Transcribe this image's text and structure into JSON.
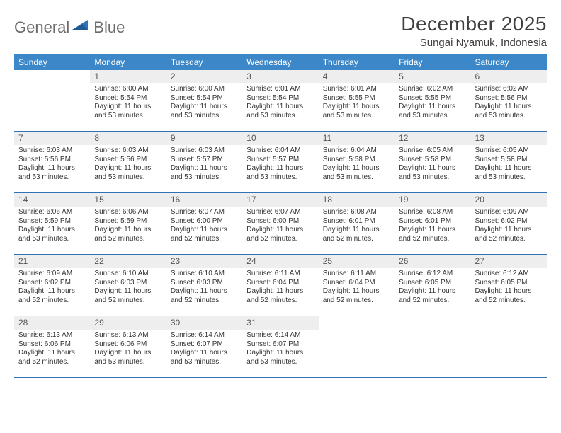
{
  "brand": {
    "name_a": "General",
    "name_b": "Blue"
  },
  "title": "December 2025",
  "location": "Sungai Nyamuk, Indonesia",
  "colors": {
    "header_bg": "#3b87c8",
    "header_text": "#ffffff",
    "rule": "#2e74b5",
    "daynum_bg": "#eeeeee",
    "text": "#333333",
    "logo_gray": "#6b6b6b",
    "logo_blue": "#2e74b5",
    "page_bg": "#ffffff"
  },
  "typography": {
    "title_fontsize": 28,
    "location_fontsize": 15,
    "dayheader_fontsize": 12,
    "daynum_fontsize": 12,
    "body_fontsize": 10
  },
  "day_names": [
    "Sunday",
    "Monday",
    "Tuesday",
    "Wednesday",
    "Thursday",
    "Friday",
    "Saturday"
  ],
  "weeks": [
    [
      {
        "n": "",
        "sunrise": "",
        "sunset": "",
        "daylight1": "",
        "daylight2": "",
        "empty": true
      },
      {
        "n": "1",
        "sunrise": "Sunrise: 6:00 AM",
        "sunset": "Sunset: 5:54 PM",
        "daylight1": "Daylight: 11 hours",
        "daylight2": "and 53 minutes."
      },
      {
        "n": "2",
        "sunrise": "Sunrise: 6:00 AM",
        "sunset": "Sunset: 5:54 PM",
        "daylight1": "Daylight: 11 hours",
        "daylight2": "and 53 minutes."
      },
      {
        "n": "3",
        "sunrise": "Sunrise: 6:01 AM",
        "sunset": "Sunset: 5:54 PM",
        "daylight1": "Daylight: 11 hours",
        "daylight2": "and 53 minutes."
      },
      {
        "n": "4",
        "sunrise": "Sunrise: 6:01 AM",
        "sunset": "Sunset: 5:55 PM",
        "daylight1": "Daylight: 11 hours",
        "daylight2": "and 53 minutes."
      },
      {
        "n": "5",
        "sunrise": "Sunrise: 6:02 AM",
        "sunset": "Sunset: 5:55 PM",
        "daylight1": "Daylight: 11 hours",
        "daylight2": "and 53 minutes."
      },
      {
        "n": "6",
        "sunrise": "Sunrise: 6:02 AM",
        "sunset": "Sunset: 5:56 PM",
        "daylight1": "Daylight: 11 hours",
        "daylight2": "and 53 minutes."
      }
    ],
    [
      {
        "n": "7",
        "sunrise": "Sunrise: 6:03 AM",
        "sunset": "Sunset: 5:56 PM",
        "daylight1": "Daylight: 11 hours",
        "daylight2": "and 53 minutes."
      },
      {
        "n": "8",
        "sunrise": "Sunrise: 6:03 AM",
        "sunset": "Sunset: 5:56 PM",
        "daylight1": "Daylight: 11 hours",
        "daylight2": "and 53 minutes."
      },
      {
        "n": "9",
        "sunrise": "Sunrise: 6:03 AM",
        "sunset": "Sunset: 5:57 PM",
        "daylight1": "Daylight: 11 hours",
        "daylight2": "and 53 minutes."
      },
      {
        "n": "10",
        "sunrise": "Sunrise: 6:04 AM",
        "sunset": "Sunset: 5:57 PM",
        "daylight1": "Daylight: 11 hours",
        "daylight2": "and 53 minutes."
      },
      {
        "n": "11",
        "sunrise": "Sunrise: 6:04 AM",
        "sunset": "Sunset: 5:58 PM",
        "daylight1": "Daylight: 11 hours",
        "daylight2": "and 53 minutes."
      },
      {
        "n": "12",
        "sunrise": "Sunrise: 6:05 AM",
        "sunset": "Sunset: 5:58 PM",
        "daylight1": "Daylight: 11 hours",
        "daylight2": "and 53 minutes."
      },
      {
        "n": "13",
        "sunrise": "Sunrise: 6:05 AM",
        "sunset": "Sunset: 5:58 PM",
        "daylight1": "Daylight: 11 hours",
        "daylight2": "and 53 minutes."
      }
    ],
    [
      {
        "n": "14",
        "sunrise": "Sunrise: 6:06 AM",
        "sunset": "Sunset: 5:59 PM",
        "daylight1": "Daylight: 11 hours",
        "daylight2": "and 53 minutes."
      },
      {
        "n": "15",
        "sunrise": "Sunrise: 6:06 AM",
        "sunset": "Sunset: 5:59 PM",
        "daylight1": "Daylight: 11 hours",
        "daylight2": "and 52 minutes."
      },
      {
        "n": "16",
        "sunrise": "Sunrise: 6:07 AM",
        "sunset": "Sunset: 6:00 PM",
        "daylight1": "Daylight: 11 hours",
        "daylight2": "and 52 minutes."
      },
      {
        "n": "17",
        "sunrise": "Sunrise: 6:07 AM",
        "sunset": "Sunset: 6:00 PM",
        "daylight1": "Daylight: 11 hours",
        "daylight2": "and 52 minutes."
      },
      {
        "n": "18",
        "sunrise": "Sunrise: 6:08 AM",
        "sunset": "Sunset: 6:01 PM",
        "daylight1": "Daylight: 11 hours",
        "daylight2": "and 52 minutes."
      },
      {
        "n": "19",
        "sunrise": "Sunrise: 6:08 AM",
        "sunset": "Sunset: 6:01 PM",
        "daylight1": "Daylight: 11 hours",
        "daylight2": "and 52 minutes."
      },
      {
        "n": "20",
        "sunrise": "Sunrise: 6:09 AM",
        "sunset": "Sunset: 6:02 PM",
        "daylight1": "Daylight: 11 hours",
        "daylight2": "and 52 minutes."
      }
    ],
    [
      {
        "n": "21",
        "sunrise": "Sunrise: 6:09 AM",
        "sunset": "Sunset: 6:02 PM",
        "daylight1": "Daylight: 11 hours",
        "daylight2": "and 52 minutes."
      },
      {
        "n": "22",
        "sunrise": "Sunrise: 6:10 AM",
        "sunset": "Sunset: 6:03 PM",
        "daylight1": "Daylight: 11 hours",
        "daylight2": "and 52 minutes."
      },
      {
        "n": "23",
        "sunrise": "Sunrise: 6:10 AM",
        "sunset": "Sunset: 6:03 PM",
        "daylight1": "Daylight: 11 hours",
        "daylight2": "and 52 minutes."
      },
      {
        "n": "24",
        "sunrise": "Sunrise: 6:11 AM",
        "sunset": "Sunset: 6:04 PM",
        "daylight1": "Daylight: 11 hours",
        "daylight2": "and 52 minutes."
      },
      {
        "n": "25",
        "sunrise": "Sunrise: 6:11 AM",
        "sunset": "Sunset: 6:04 PM",
        "daylight1": "Daylight: 11 hours",
        "daylight2": "and 52 minutes."
      },
      {
        "n": "26",
        "sunrise": "Sunrise: 6:12 AM",
        "sunset": "Sunset: 6:05 PM",
        "daylight1": "Daylight: 11 hours",
        "daylight2": "and 52 minutes."
      },
      {
        "n": "27",
        "sunrise": "Sunrise: 6:12 AM",
        "sunset": "Sunset: 6:05 PM",
        "daylight1": "Daylight: 11 hours",
        "daylight2": "and 52 minutes."
      }
    ],
    [
      {
        "n": "28",
        "sunrise": "Sunrise: 6:13 AM",
        "sunset": "Sunset: 6:06 PM",
        "daylight1": "Daylight: 11 hours",
        "daylight2": "and 52 minutes."
      },
      {
        "n": "29",
        "sunrise": "Sunrise: 6:13 AM",
        "sunset": "Sunset: 6:06 PM",
        "daylight1": "Daylight: 11 hours",
        "daylight2": "and 53 minutes."
      },
      {
        "n": "30",
        "sunrise": "Sunrise: 6:14 AM",
        "sunset": "Sunset: 6:07 PM",
        "daylight1": "Daylight: 11 hours",
        "daylight2": "and 53 minutes."
      },
      {
        "n": "31",
        "sunrise": "Sunrise: 6:14 AM",
        "sunset": "Sunset: 6:07 PM",
        "daylight1": "Daylight: 11 hours",
        "daylight2": "and 53 minutes."
      },
      {
        "n": "",
        "sunrise": "",
        "sunset": "",
        "daylight1": "",
        "daylight2": "",
        "empty": true
      },
      {
        "n": "",
        "sunrise": "",
        "sunset": "",
        "daylight1": "",
        "daylight2": "",
        "empty": true
      },
      {
        "n": "",
        "sunrise": "",
        "sunset": "",
        "daylight1": "",
        "daylight2": "",
        "empty": true
      }
    ]
  ]
}
